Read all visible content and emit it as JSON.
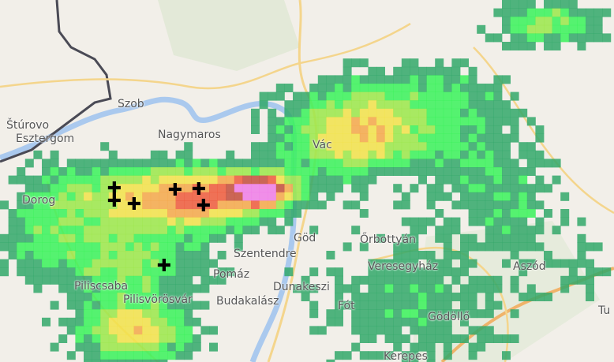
{
  "map": {
    "colors": {
      "land": "#f2efe9",
      "forest": "#dde6d0",
      "river": "#aac9ee",
      "road_major": "#f0b36a",
      "road_minor": "#f4d58c",
      "border": "#4a4a55"
    },
    "radar_scale": [
      "#33a86a",
      "#3af25a",
      "#9be84a",
      "#f2e24a",
      "#f5a84a",
      "#ee5a3c",
      "#c44e3c",
      "#f07ce8"
    ],
    "places": [
      {
        "name": "Szob"
      },
      {
        "name": "Štúrovo"
      },
      {
        "name": "Esztergom"
      },
      {
        "name": "Nagymaros"
      },
      {
        "name": "Vác"
      },
      {
        "name": "Dorog"
      },
      {
        "name": "Göd"
      },
      {
        "name": "Őrbottyán"
      },
      {
        "name": "Szentendre"
      },
      {
        "name": "Veresegyház"
      },
      {
        "name": "Aszód"
      },
      {
        "name": "Pomáz"
      },
      {
        "name": "Dunakeszi"
      },
      {
        "name": "Piliscsaba"
      },
      {
        "name": "Pilisvörösvár"
      },
      {
        "name": "Budakalász"
      },
      {
        "name": "Fót"
      },
      {
        "name": "Gödöllő"
      },
      {
        "name": "Kerepes"
      },
      {
        "name": "Tu"
      }
    ],
    "lightning_icon": "lightning-cross-icon"
  }
}
